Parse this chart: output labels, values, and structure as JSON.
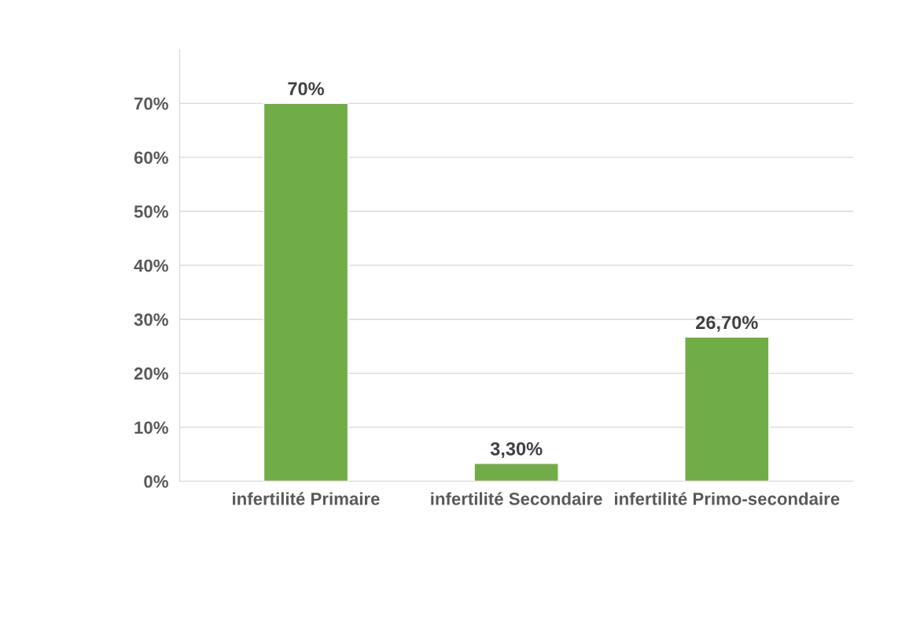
{
  "chart_data": {
    "type": "bar",
    "categories": [
      "infertilité Primaire",
      "infertilité Secondaire",
      "infertilité Primo-secondaire"
    ],
    "values": [
      70,
      3.3,
      26.7
    ],
    "value_labels": [
      "70%",
      "3,30%",
      "26,70%"
    ],
    "color": "#70ad47",
    "ylim": [
      0,
      80
    ],
    "yticks": [
      {
        "value": 0,
        "label": "0%"
      },
      {
        "value": 10,
        "label": "10%"
      },
      {
        "value": 20,
        "label": "20%"
      },
      {
        "value": 30,
        "label": "30%"
      },
      {
        "value": 40,
        "label": "40%"
      },
      {
        "value": 50,
        "label": "50%"
      },
      {
        "value": 60,
        "label": "60%"
      },
      {
        "value": 70,
        "label": "70%"
      }
    ],
    "grid": "y"
  }
}
